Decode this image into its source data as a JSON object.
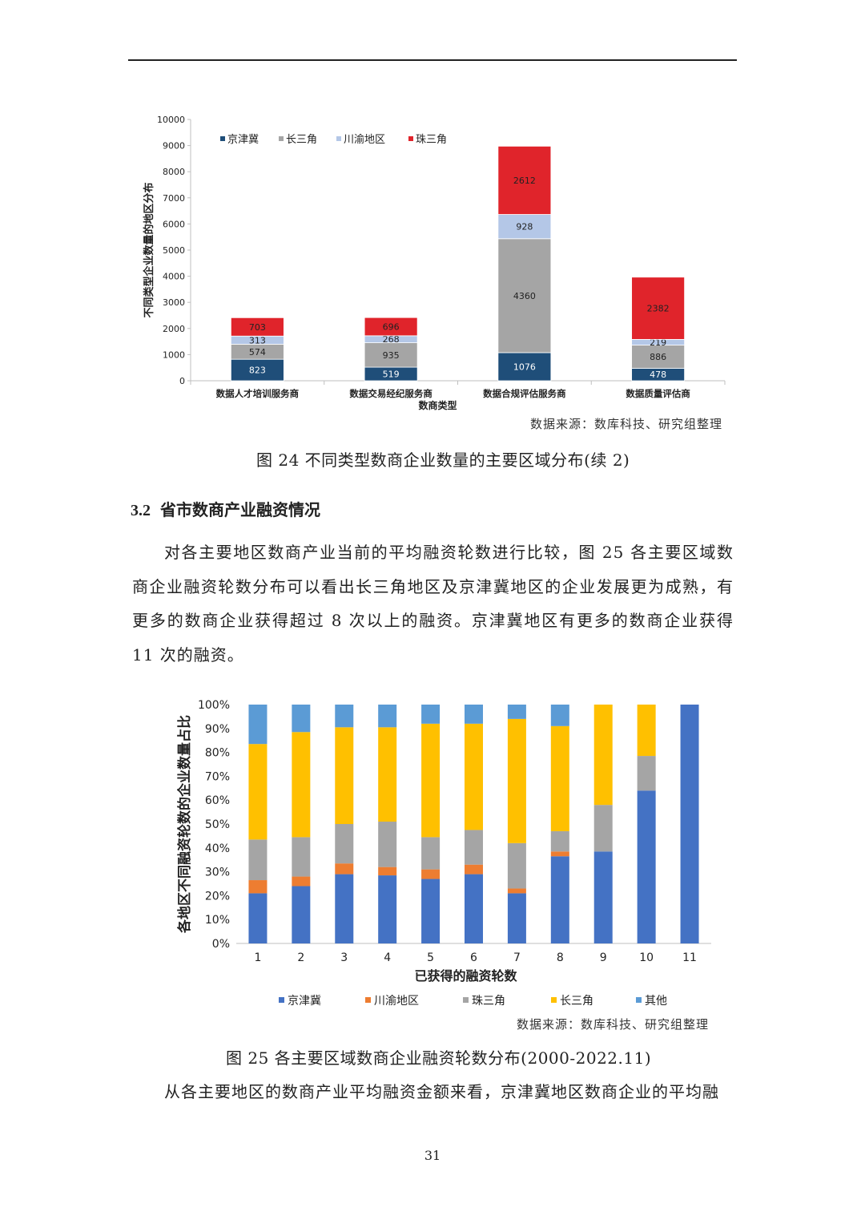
{
  "header": {},
  "chart1": {
    "caption": "图 24  不同类型数商企业数量的主要区域分布(续 2)",
    "source": "数据来源：数库科技、研究组整理"
  },
  "section": {
    "number": "3.2",
    "title": "省市数商产业融资情况"
  },
  "paragraph1": "对各主要地区数商产业当前的平均融资轮数进行比较，图 25 各主要区域数商企业融资轮数分布可以看出长三角地区及京津冀地区的企业发展更为成熟，有更多的数商企业获得超过 8 次以上的融资。京津冀地区有更多的数商企业获得 11 次的融资。",
  "chart2": {
    "caption": "图 25 各主要区域数商企业融资轮数分布(2000-2022.11)",
    "source": "数据来源：数库科技、研究组整理"
  },
  "paragraph2": "从各主要地区的数商产业平均融资金额来看，京津冀地区数商企业的平均融",
  "page_number": "31",
  "chart_data": [
    {
      "type": "bar",
      "stacked": true,
      "categories": [
        "数据人才培训服务商",
        "数据交易经纪服务商",
        "数据合规评估服务商",
        "数据质量评估商"
      ],
      "series": [
        {
          "name": "京津冀",
          "color": "#1f4e79",
          "values": [
            823,
            519,
            1076,
            478
          ]
        },
        {
          "name": "长三角",
          "color": "#a5a5a5",
          "values": [
            574,
            935,
            4360,
            886
          ]
        },
        {
          "name": "川渝地区",
          "color": "#b4c7e7",
          "values": [
            313,
            268,
            928,
            219
          ]
        },
        {
          "name": "珠三角",
          "color": "#e0242b",
          "values": [
            703,
            696,
            2612,
            2382
          ]
        }
      ],
      "xlabel": "数商类型",
      "ylabel": "不同类型企业数量的地区分布",
      "ylim": [
        0,
        10000
      ],
      "yticks": [
        0,
        1000,
        2000,
        3000,
        4000,
        5000,
        6000,
        7000,
        8000,
        9000,
        10000
      ],
      "legend": "top-left",
      "grid": false
    },
    {
      "type": "bar",
      "stacked": true,
      "percent": true,
      "categories": [
        "1",
        "2",
        "3",
        "4",
        "5",
        "6",
        "7",
        "8",
        "9",
        "10",
        "11"
      ],
      "series": [
        {
          "name": "京津冀",
          "color": "#4472c4",
          "values": [
            21,
            24,
            29,
            28.5,
            27,
            29,
            21,
            36.5,
            38.5,
            64,
            100
          ]
        },
        {
          "name": "川渝地区",
          "color": "#ed7d31",
          "values": [
            5.5,
            4,
            4.5,
            3.5,
            4,
            4,
            2,
            2,
            0,
            0,
            0
          ]
        },
        {
          "name": "珠三角",
          "color": "#a5a5a5",
          "values": [
            17,
            16.5,
            16.5,
            19,
            13.5,
            14.5,
            19,
            8.5,
            19.5,
            14.5,
            0
          ]
        },
        {
          "name": "长三角",
          "color": "#ffc000",
          "values": [
            40,
            44,
            40.5,
            39.5,
            47.5,
            44.5,
            52,
            44,
            42,
            21.5,
            0
          ]
        },
        {
          "name": "其他",
          "color": "#5b9bd5",
          "values": [
            16.5,
            11.5,
            9.5,
            9.5,
            8,
            8,
            6,
            9,
            0,
            0,
            0
          ]
        }
      ],
      "xlabel": "已获得的融资轮数",
      "ylabel": "各地区不同融资轮数的企业数量占比",
      "ylim": [
        0,
        100
      ],
      "yticks": [
        "0%",
        "10%",
        "20%",
        "30%",
        "40%",
        "50%",
        "60%",
        "70%",
        "80%",
        "90%",
        "100%"
      ],
      "legend": "bottom",
      "grid": false
    }
  ]
}
